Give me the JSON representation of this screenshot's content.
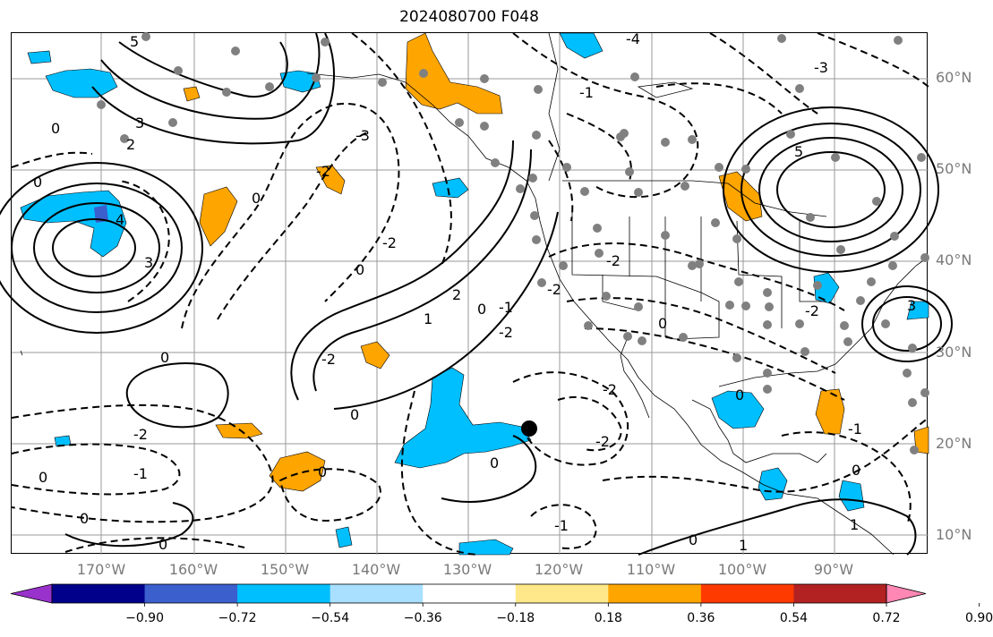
{
  "title": "2024080700 F048",
  "lat_labels": [
    "60°N",
    "50°N",
    "40°N",
    "30°N",
    "20°N",
    "10°N"
  ],
  "lon_labels": [
    "170°W",
    "160°W",
    "150°W",
    "140°W",
    "130°W",
    "120°W",
    "110°W",
    "100°W",
    "90°W"
  ],
  "contour_labels": [
    "-4",
    "-3",
    "-2",
    "-1",
    "0",
    "1",
    "2",
    "3",
    "4",
    "5"
  ],
  "colorbar": {
    "ticks": [
      "−0.90",
      "−0.72",
      "−0.54",
      "−0.36",
      "−0.18",
      "0.18",
      "0.36",
      "0.54",
      "0.72",
      "0.90"
    ],
    "colors": [
      "#9932cc",
      "#00008b",
      "#3b5fcd",
      "#00bfff",
      "#a9dfff",
      "#ffffff",
      "#ffe88a",
      "#ffa500",
      "#ff3a00",
      "#b22222",
      "#ff87b4"
    ]
  },
  "colors": {
    "positive_anomaly": "#ffa500",
    "negative_anomaly": "#00bfff",
    "station_dot": "#808080",
    "marker": "#000000"
  }
}
